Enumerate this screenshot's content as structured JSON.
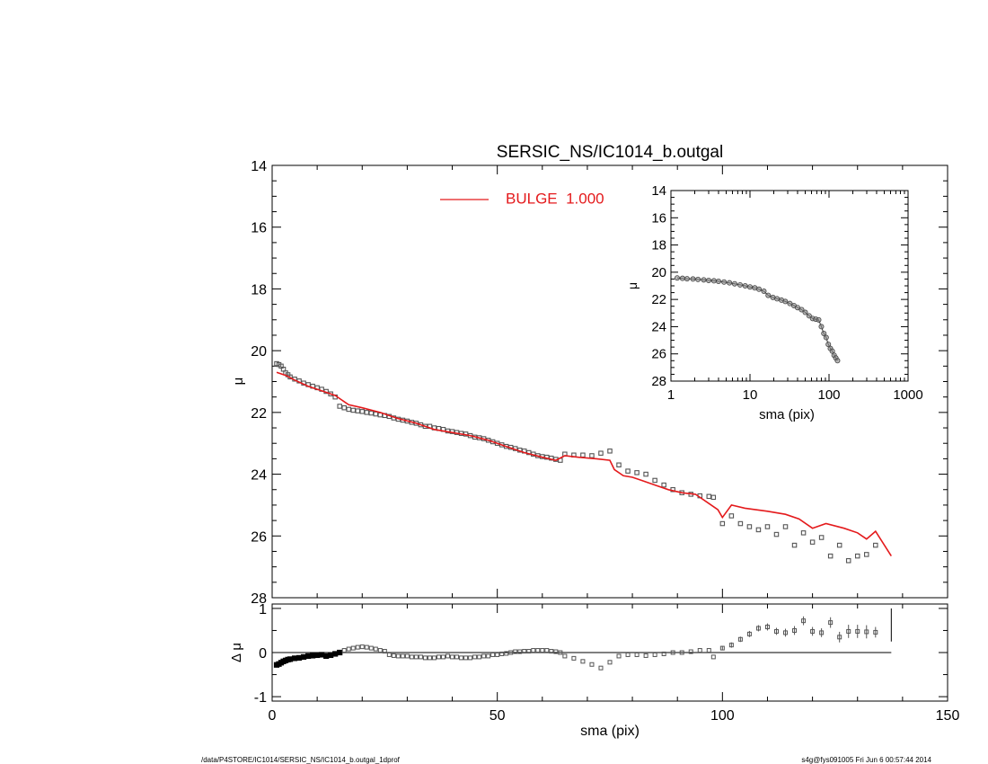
{
  "colors": {
    "model_line": "#e41a1c",
    "data_marker": "#555555",
    "axis": "#000000"
  },
  "footer": {
    "path": "/data/P4STORE/IC1014/SERSIC_NS/IC1014_b.outgal_1dprof",
    "user_time": "s4g@fys091005  Fri Jun  6 00:57:44 2014"
  },
  "chart_data": [
    {
      "id": "main",
      "type": "scatter",
      "title": "SERSIC_NS/IC1014_b.outgal",
      "xlabel": "",
      "ylabel": "μ",
      "xlim": [
        0,
        150
      ],
      "ylim": [
        28,
        14
      ],
      "y_reversed": true,
      "yticks": [
        14,
        16,
        18,
        20,
        22,
        24,
        26,
        28
      ],
      "legend": {
        "placement": "top-center",
        "entries": [
          {
            "label": "BULGE  1.000",
            "color": "#e41a1c"
          }
        ]
      },
      "series": [
        {
          "name": "BULGE  1.000",
          "kind": "line",
          "x": [
            1,
            3,
            5,
            8,
            11,
            14,
            17,
            20,
            24,
            28,
            32,
            36,
            40,
            44,
            48,
            52,
            56,
            60,
            63,
            65,
            68,
            72,
            75,
            76,
            78,
            80,
            82,
            85,
            88,
            91,
            94,
            97,
            99,
            100,
            102,
            105,
            110,
            114,
            117,
            120,
            123,
            127,
            130,
            132,
            134,
            137.5
          ],
          "y": [
            20.7,
            20.8,
            20.95,
            21.15,
            21.3,
            21.45,
            21.75,
            21.85,
            22.0,
            22.2,
            22.35,
            22.55,
            22.65,
            22.75,
            22.9,
            23.1,
            23.3,
            23.45,
            23.55,
            23.4,
            23.45,
            23.5,
            23.55,
            23.85,
            24.05,
            24.1,
            24.2,
            24.35,
            24.5,
            24.6,
            24.65,
            24.95,
            25.15,
            25.4,
            25.0,
            25.1,
            25.2,
            25.3,
            25.45,
            25.75,
            25.6,
            25.75,
            25.9,
            26.1,
            25.85,
            26.65
          ]
        },
        {
          "name": "",
          "kind": "markers",
          "x": [
            1.0,
            1.5,
            2.0,
            2.5,
            3.0,
            3.5,
            4.0,
            5.0,
            6.0,
            7.0,
            8.0,
            9.0,
            10.0,
            11.0,
            12.0,
            13.0,
            14.0,
            15.0,
            16.0,
            17.0,
            18.0,
            19.0,
            20.0,
            21.0,
            22.0,
            23.0,
            24.0,
            25.0,
            26.0,
            27.0,
            28.0,
            29.0,
            30.0,
            31.0,
            32.0,
            33.0,
            34.0,
            35.0,
            36.0,
            37.0,
            38.0,
            39.0,
            40.0,
            41.0,
            42.0,
            43.0,
            44.0,
            45.0,
            46.0,
            47.0,
            48.0,
            49.0,
            50.0,
            51.0,
            52.0,
            53.0,
            54.0,
            55.0,
            56.0,
            57.0,
            58.0,
            59.0,
            60.0,
            61.0,
            62.0,
            63.0,
            64.0,
            65.0,
            67.0,
            69.0,
            71.0,
            73.0,
            75.0,
            77.0,
            79.0,
            81.0,
            83.0,
            85.0,
            87.0,
            89.0,
            91.0,
            93.0,
            95.0,
            97.0,
            98.0,
            100.0,
            102.0,
            104.0,
            106.0,
            108.0,
            110.0,
            112.0,
            114.0,
            116.0,
            118.0,
            120.0,
            122.0,
            124.0,
            126.0,
            128.0,
            130.0,
            132.0,
            134.0
          ],
          "y": [
            20.42,
            20.45,
            20.5,
            20.6,
            20.72,
            20.78,
            20.85,
            20.92,
            20.98,
            21.05,
            21.1,
            21.15,
            21.2,
            21.25,
            21.32,
            21.4,
            21.5,
            21.8,
            21.85,
            21.9,
            21.93,
            21.95,
            21.97,
            22.0,
            22.02,
            22.05,
            22.08,
            22.1,
            22.13,
            22.18,
            22.22,
            22.25,
            22.28,
            22.32,
            22.35,
            22.4,
            22.45,
            22.45,
            22.5,
            22.52,
            22.55,
            22.6,
            22.62,
            22.65,
            22.68,
            22.7,
            22.75,
            22.8,
            22.82,
            22.85,
            22.9,
            22.95,
            23.0,
            23.05,
            23.1,
            23.13,
            23.17,
            23.22,
            23.25,
            23.3,
            23.35,
            23.4,
            23.43,
            23.45,
            23.48,
            23.52,
            23.55,
            23.35,
            23.38,
            23.38,
            23.4,
            23.32,
            23.25,
            23.7,
            23.9,
            23.95,
            24.0,
            24.2,
            24.35,
            24.5,
            24.6,
            24.65,
            24.7,
            24.72,
            24.75,
            25.6,
            25.35,
            25.6,
            25.7,
            25.8,
            25.7,
            25.95,
            25.7,
            26.3,
            25.9,
            26.2,
            26.05,
            26.65,
            26.3,
            26.8,
            26.65,
            26.6,
            26.3
          ]
        }
      ]
    },
    {
      "id": "residual",
      "type": "scatter",
      "xlabel": "sma (pix)",
      "ylabel": "Δ μ",
      "xlim": [
        0,
        150
      ],
      "ylim": [
        -1.1,
        1.1
      ],
      "xticks": [
        0,
        50,
        100,
        150
      ],
      "yticks": [
        -1,
        0,
        1
      ],
      "zero_line": true,
      "series": [
        {
          "name": "",
          "kind": "markers",
          "x": [
            1.0,
            1.5,
            2.0,
            2.5,
            3.0,
            3.5,
            4.0,
            5.0,
            6.0,
            7.0,
            8.0,
            9.0,
            10.0,
            11.0,
            12.0,
            13.0,
            14.0,
            15.0,
            16.0,
            17.0,
            18.0,
            19.0,
            20.0,
            21.0,
            22.0,
            23.0,
            24.0,
            25.0,
            26.0,
            27.0,
            28.0,
            29.0,
            30.0,
            31.0,
            32.0,
            33.0,
            34.0,
            35.0,
            36.0,
            37.0,
            38.0,
            39.0,
            40.0,
            41.0,
            42.0,
            43.0,
            44.0,
            45.0,
            46.0,
            47.0,
            48.0,
            49.0,
            50.0,
            51.0,
            52.0,
            53.0,
            54.0,
            55.0,
            56.0,
            57.0,
            58.0,
            59.0,
            60.0,
            61.0,
            62.0,
            63.0,
            64.0,
            65.0,
            67.0,
            69.0,
            71.0,
            73.0,
            75.0,
            77.0,
            79.0,
            81.0,
            83.0,
            85.0,
            87.0,
            89.0,
            91.0,
            93.0,
            95.0,
            97.0,
            98.0,
            100.0,
            102.0,
            104.0,
            106.0,
            108.0,
            110.0,
            112.0,
            114.0,
            116.0,
            118.0,
            120.0,
            122.0,
            124.0,
            126.0,
            128.0,
            130.0,
            132.0,
            134.0
          ],
          "y": [
            -0.28,
            -0.26,
            -0.23,
            -0.2,
            -0.18,
            -0.16,
            -0.15,
            -0.13,
            -0.12,
            -0.1,
            -0.08,
            -0.07,
            -0.06,
            -0.05,
            -0.08,
            -0.06,
            -0.03,
            0.0,
            0.05,
            0.08,
            0.1,
            0.12,
            0.13,
            0.12,
            0.1,
            0.08,
            0.05,
            0.03,
            -0.05,
            -0.07,
            -0.08,
            -0.08,
            -0.08,
            -0.1,
            -0.1,
            -0.1,
            -0.12,
            -0.12,
            -0.12,
            -0.1,
            -0.1,
            -0.08,
            -0.1,
            -0.1,
            -0.12,
            -0.12,
            -0.12,
            -0.1,
            -0.1,
            -0.08,
            -0.08,
            -0.05,
            -0.05,
            -0.03,
            -0.02,
            0.0,
            0.02,
            0.02,
            0.03,
            0.03,
            0.05,
            0.05,
            0.05,
            0.05,
            0.03,
            0.02,
            0.0,
            -0.08,
            -0.13,
            -0.2,
            -0.27,
            -0.35,
            -0.22,
            -0.08,
            -0.05,
            -0.05,
            -0.07,
            -0.05,
            -0.03,
            0.0,
            0.0,
            0.02,
            0.05,
            0.05,
            -0.1,
            0.1,
            0.17,
            0.3,
            0.42,
            0.55,
            0.58,
            0.48,
            0.45,
            0.5,
            0.72,
            0.48,
            0.45,
            0.68,
            0.35,
            0.48,
            0.48,
            0.47,
            0.46
          ],
          "err": [
            0,
            0,
            0,
            0,
            0,
            0,
            0,
            0,
            0,
            0,
            0,
            0,
            0,
            0,
            0,
            0,
            0,
            0,
            0,
            0,
            0,
            0,
            0,
            0,
            0,
            0,
            0,
            0,
            0,
            0,
            0,
            0,
            0,
            0,
            0,
            0,
            0,
            0,
            0,
            0,
            0,
            0,
            0,
            0,
            0,
            0,
            0,
            0,
            0,
            0,
            0,
            0,
            0,
            0,
            0,
            0,
            0,
            0,
            0,
            0,
            0,
            0,
            0,
            0,
            0,
            0,
            0,
            0,
            0,
            0,
            0,
            0,
            0,
            0,
            0,
            0,
            0,
            0,
            0,
            0,
            0,
            0,
            0,
            0,
            0,
            0.05,
            0.06,
            0.06,
            0.07,
            0.07,
            0.08,
            0.08,
            0.09,
            0.1,
            0.1,
            0.1,
            0.1,
            0.12,
            0.12,
            0.15,
            0.15,
            0.15,
            0.12
          ]
        }
      ]
    },
    {
      "id": "inset",
      "type": "scatter",
      "xlabel": "sma (pix)",
      "ylabel": "μ",
      "xscale": "log",
      "xlim": [
        1,
        1000
      ],
      "ylim": [
        28,
        14
      ],
      "y_reversed": true,
      "xticks": [
        1,
        10,
        100,
        1000
      ],
      "yticks": [
        14,
        16,
        18,
        20,
        22,
        24,
        26,
        28
      ],
      "series": [
        {
          "name": "",
          "kind": "markers",
          "x": [
            1.2,
            1.4,
            1.6,
            1.9,
            2.2,
            2.6,
            3.0,
            3.5,
            4.0,
            4.7,
            5.5,
            6.4,
            7.5,
            8.7,
            10.0,
            11.5,
            13.0,
            15.0,
            17.0,
            19.5,
            22.0,
            25.0,
            28.0,
            32.0,
            36.0,
            40.0,
            45.0,
            50.0,
            56.0,
            62.0,
            68.0,
            74.0,
            80.0,
            86.0,
            92.0,
            98.0,
            104.0,
            110.0,
            116.0,
            122.0,
            128.0
          ],
          "y": [
            20.42,
            20.45,
            20.48,
            20.5,
            20.53,
            20.56,
            20.6,
            20.63,
            20.67,
            20.72,
            20.78,
            20.85,
            20.93,
            21.0,
            21.08,
            21.15,
            21.25,
            21.4,
            21.7,
            21.85,
            21.95,
            22.05,
            22.15,
            22.3,
            22.45,
            22.6,
            22.75,
            22.95,
            23.2,
            23.4,
            23.45,
            23.5,
            24.0,
            24.5,
            24.8,
            25.3,
            25.6,
            25.8,
            26.1,
            26.3,
            26.5
          ]
        }
      ]
    }
  ]
}
